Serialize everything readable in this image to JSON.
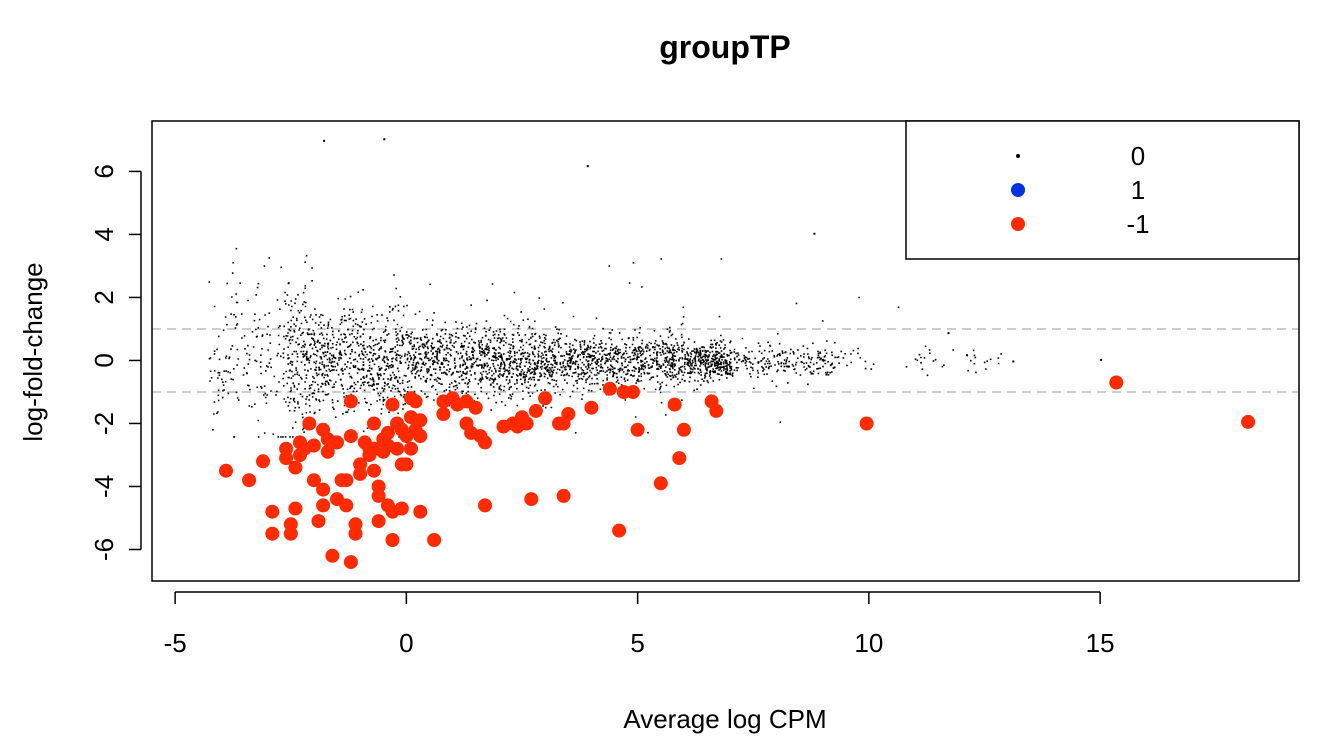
{
  "chart_data": {
    "type": "scatter",
    "title": "groupTP",
    "xlabel": "Average log CPM",
    "ylabel": "log-fold-change",
    "xlim": [
      -5.5,
      19.3
    ],
    "ylim": [
      -7.0,
      7.6
    ],
    "x_ticks": [
      -5,
      0,
      5,
      10,
      15
    ],
    "y_ticks": [
      -6,
      -4,
      -2,
      0,
      2,
      4,
      6
    ],
    "reference_lines": [
      1,
      -1
    ],
    "legend": {
      "position": "top-right",
      "entries": [
        {
          "label": "0",
          "color": "#000000"
        },
        {
          "label": "1",
          "color": "#0033e6"
        },
        {
          "label": "-1",
          "color": "#ff2a00"
        }
      ]
    },
    "colors": {
      "non_significant": "#000000",
      "up": "#0033e6",
      "down": "#ff2a00",
      "reference_line": "#bdbdbd"
    },
    "background_cloud": {
      "description": "Thousands of non-significant genes (status 0) concentrated around logFC 0, densest for logCPM -2.5 to 7, spread widest at low logCPM",
      "count": 9000
    },
    "series": [
      {
        "name": "-1",
        "points": [
          [
            -3.9,
            -3.5
          ],
          [
            -3.4,
            -3.8
          ],
          [
            -3.1,
            -3.2
          ],
          [
            -2.9,
            -4.8
          ],
          [
            -2.9,
            -5.5
          ],
          [
            -2.6,
            -2.8
          ],
          [
            -2.6,
            -3.1
          ],
          [
            -2.5,
            -5.2
          ],
          [
            -2.5,
            -5.5
          ],
          [
            -2.4,
            -4.7
          ],
          [
            -2.4,
            -3.4
          ],
          [
            -2.3,
            -2.6
          ],
          [
            -2.3,
            -3.0
          ],
          [
            -2.2,
            -2.8
          ],
          [
            -2.1,
            -2.0
          ],
          [
            -2.0,
            -3.8
          ],
          [
            -2.0,
            -2.7
          ],
          [
            -1.9,
            -5.1
          ],
          [
            -1.8,
            -4.1
          ],
          [
            -1.8,
            -4.6
          ],
          [
            -1.8,
            -2.2
          ],
          [
            -1.7,
            -2.5
          ],
          [
            -1.7,
            -2.9
          ],
          [
            -1.6,
            -6.2
          ],
          [
            -1.6,
            -2.6
          ],
          [
            -1.5,
            -4.4
          ],
          [
            -1.5,
            -2.6
          ],
          [
            -1.4,
            -3.8
          ],
          [
            -1.3,
            -3.8
          ],
          [
            -1.3,
            -4.6
          ],
          [
            -1.2,
            -6.4
          ],
          [
            -1.2,
            -2.4
          ],
          [
            -1.2,
            -1.3
          ],
          [
            -1.1,
            -5.2
          ],
          [
            -1.1,
            -5.5
          ],
          [
            -1.0,
            -3.3
          ],
          [
            -1.0,
            -3.6
          ],
          [
            -0.9,
            -2.6
          ],
          [
            -0.8,
            -2.8
          ],
          [
            -0.8,
            -3.0
          ],
          [
            -0.7,
            -2.0
          ],
          [
            -0.7,
            -3.5
          ],
          [
            -0.7,
            -2.8
          ],
          [
            -0.6,
            -4.0
          ],
          [
            -0.6,
            -4.3
          ],
          [
            -0.6,
            -5.1
          ],
          [
            -0.5,
            -2.5
          ],
          [
            -0.5,
            -2.9
          ],
          [
            -0.4,
            -2.7
          ],
          [
            -0.4,
            -4.6
          ],
          [
            -0.4,
            -2.3
          ],
          [
            -0.3,
            -4.8
          ],
          [
            -0.3,
            -5.7
          ],
          [
            -0.3,
            -1.4
          ],
          [
            -0.2,
            -2.0
          ],
          [
            -0.2,
            -2.8
          ],
          [
            -0.1,
            -2.2
          ],
          [
            -0.1,
            -4.7
          ],
          [
            -0.1,
            -3.3
          ],
          [
            0.0,
            -2.4
          ],
          [
            0.0,
            -3.3
          ],
          [
            0.1,
            -2.8
          ],
          [
            0.1,
            -1.2
          ],
          [
            0.1,
            -1.8
          ],
          [
            0.2,
            -1.3
          ],
          [
            0.2,
            -2.2
          ],
          [
            0.3,
            -2.4
          ],
          [
            0.3,
            -4.8
          ],
          [
            0.3,
            -1.9
          ],
          [
            0.6,
            -5.7
          ],
          [
            0.8,
            -1.3
          ],
          [
            0.8,
            -1.7
          ],
          [
            1.0,
            -1.2
          ],
          [
            1.1,
            -1.4
          ],
          [
            1.3,
            -1.3
          ],
          [
            1.3,
            -2.0
          ],
          [
            1.4,
            -2.3
          ],
          [
            1.5,
            -1.5
          ],
          [
            1.6,
            -2.4
          ],
          [
            1.7,
            -2.6
          ],
          [
            1.7,
            -4.6
          ],
          [
            2.1,
            -2.1
          ],
          [
            2.3,
            -2.0
          ],
          [
            2.4,
            -2.1
          ],
          [
            2.5,
            -1.8
          ],
          [
            2.6,
            -2.0
          ],
          [
            2.7,
            -4.4
          ],
          [
            2.8,
            -1.6
          ],
          [
            3.0,
            -1.2
          ],
          [
            3.3,
            -2.0
          ],
          [
            3.4,
            -2.0
          ],
          [
            3.4,
            -4.3
          ],
          [
            3.5,
            -1.7
          ],
          [
            4.0,
            -1.5
          ],
          [
            4.4,
            -0.9
          ],
          [
            4.6,
            -5.4
          ],
          [
            4.7,
            -1.0
          ],
          [
            4.9,
            -1.0
          ],
          [
            5.0,
            -2.2
          ],
          [
            5.5,
            -3.9
          ],
          [
            5.8,
            -1.4
          ],
          [
            5.9,
            -3.1
          ],
          [
            6.0,
            -2.2
          ],
          [
            6.6,
            -1.3
          ],
          [
            6.7,
            -1.6
          ],
          [
            9.95,
            -2.0
          ],
          [
            15.35,
            -0.7
          ],
          [
            18.2,
            -1.95
          ]
        ]
      }
    ]
  }
}
